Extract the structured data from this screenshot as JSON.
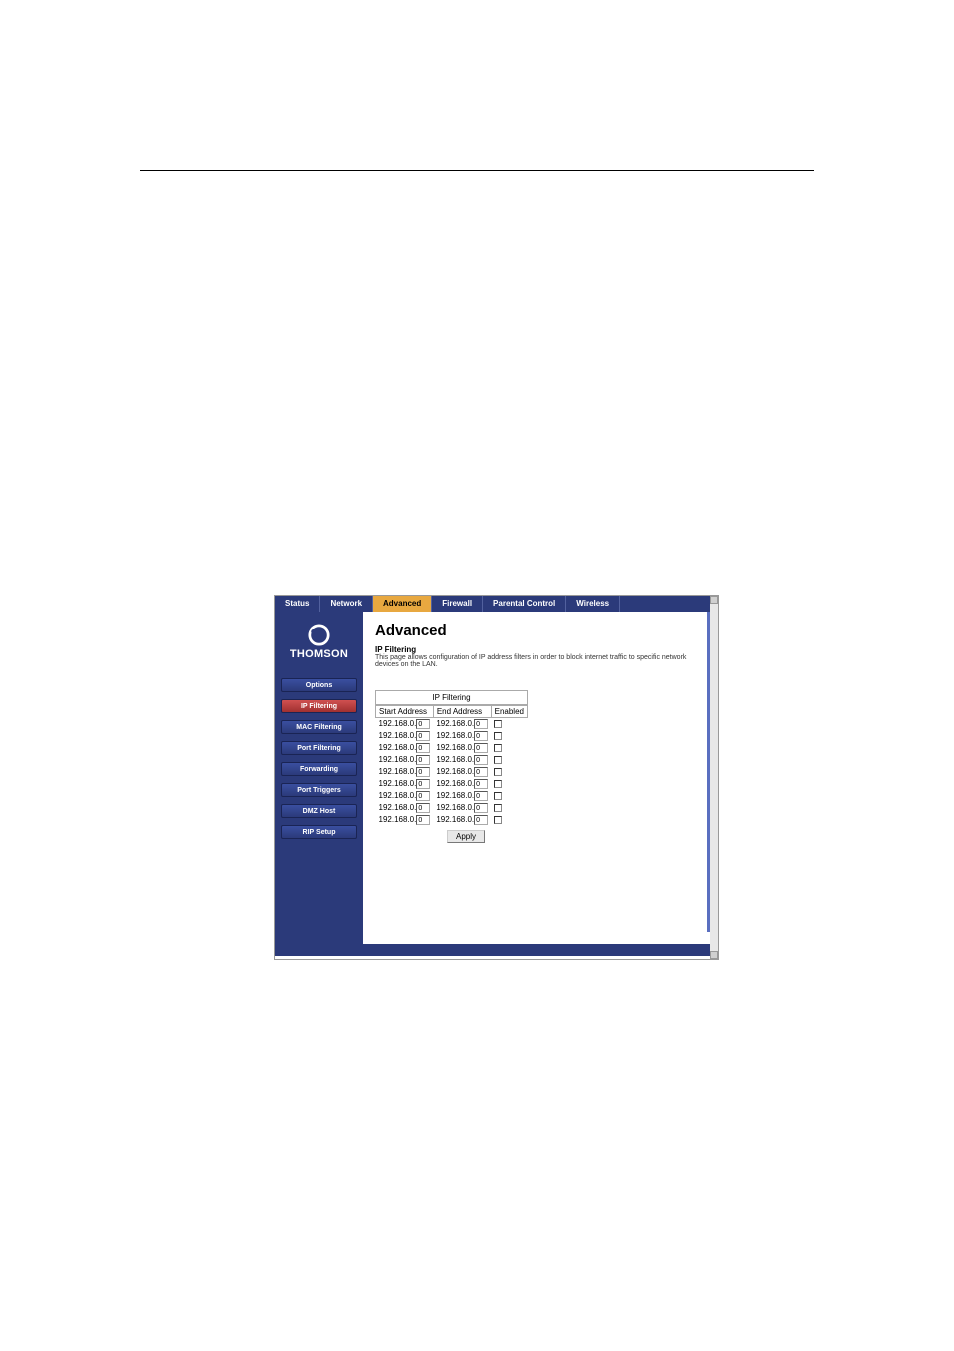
{
  "topnav": {
    "items": [
      {
        "label": "Status"
      },
      {
        "label": "Network"
      },
      {
        "label": "Advanced"
      },
      {
        "label": "Firewall"
      },
      {
        "label": "Parental Control"
      },
      {
        "label": "Wireless"
      }
    ],
    "active_index": 2
  },
  "brand": {
    "name": "THOMSON"
  },
  "sidebar": {
    "items": [
      {
        "label": "Options"
      },
      {
        "label": "IP Filtering"
      },
      {
        "label": "MAC Filtering"
      },
      {
        "label": "Port Filtering"
      },
      {
        "label": "Forwarding"
      },
      {
        "label": "Port Triggers"
      },
      {
        "label": "DMZ Host"
      },
      {
        "label": "RIP Setup"
      }
    ],
    "active_index": 1
  },
  "page": {
    "title": "Advanced",
    "subtitle": "IP Filtering",
    "description": "This page allows configuration of IP address filters in order to block internet traffic to specific network devices on the LAN."
  },
  "filter_table": {
    "caption": "IP Filtering",
    "columns": [
      "Start Address",
      "End Address",
      "Enabled"
    ],
    "ip_prefix": "192.168.0.",
    "default_octet": "0",
    "row_count": 9,
    "apply_label": "Apply"
  },
  "colors": {
    "nav_bg": "#2b3a7a",
    "nav_active": "#e8a840",
    "sidebar_btn_sel": "#d05050",
    "accent": "#5a6fc0"
  }
}
